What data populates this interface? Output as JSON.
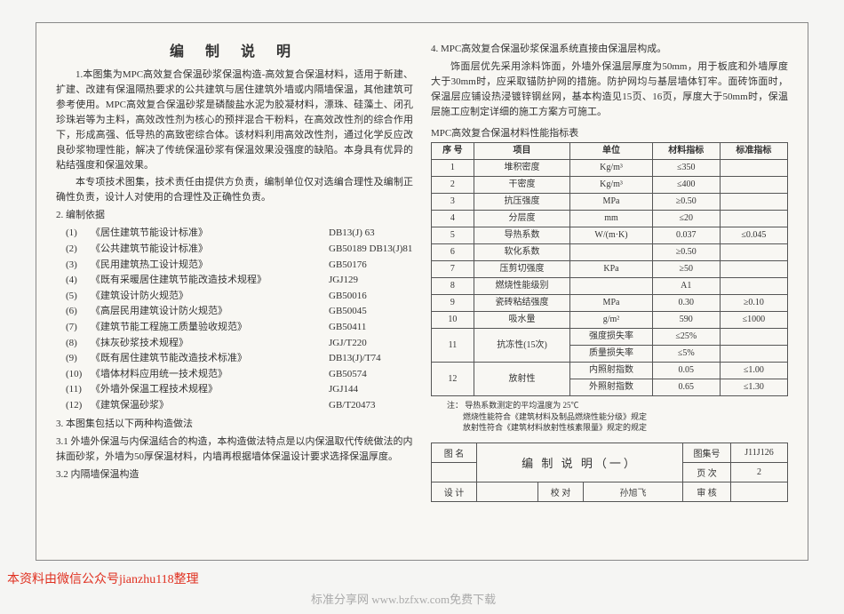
{
  "title": "编 制 说 明",
  "p1_1": "1.本图集为MPC高效复合保温砂浆保温构造-高效复合保温材料，适用于新建、扩建、改建有保温隔热要求的公共建筑与居住建筑外墙或内隔墙保温，其他建筑可参考使用。MPC高效复合保温砂浆是磷酸盐水泥为胶凝材料，漂珠、硅藻土、闭孔珍珠岩等为主料，高效改性剂为核心的预拌混合干粉料，在高效改性剂的综合作用下，形成高强、低导热的高致密综合体。该材料利用高效改性剂，通过化学反应改良砂浆物理性能，解决了传统保温砂浆有保温效果没强度的缺陷。本身具有优异的粘结强度和保温效果。",
  "p1_2": "本专项技术图集，技术责任由提供方负责，编制单位仅对选编合理性及编制正确性负责，设计人对使用的合理性及正确性负责。",
  "s2": "2. 编制依据",
  "standards": [
    {
      "n": "(1)",
      "name": "《居住建筑节能设计标准》",
      "code": "DB13(J) 63"
    },
    {
      "n": "(2)",
      "name": "《公共建筑节能设计标准》",
      "code": "GB50189 DB13(J)81"
    },
    {
      "n": "(3)",
      "name": "《民用建筑热工设计规范》",
      "code": "GB50176"
    },
    {
      "n": "(4)",
      "name": "《既有采暖居住建筑节能改造技术规程》",
      "code": "JGJ129"
    },
    {
      "n": "(5)",
      "name": "《建筑设计防火规范》",
      "code": "GB50016"
    },
    {
      "n": "(6)",
      "name": "《高层民用建筑设计防火规范》",
      "code": "GB50045"
    },
    {
      "n": "(7)",
      "name": "《建筑节能工程施工质量验收规范》",
      "code": "GB50411"
    },
    {
      "n": "(8)",
      "name": "《抹灰砂浆技术规程》",
      "code": "JGJ/T220"
    },
    {
      "n": "(9)",
      "name": "《既有居住建筑节能改造技术标准》",
      "code": "DB13(J)/T74"
    },
    {
      "n": "(10)",
      "name": "《墙体材料应用统一技术规范》",
      "code": "GB50574"
    },
    {
      "n": "(11)",
      "name": "《外墙外保温工程技术规程》",
      "code": "JGJ144"
    },
    {
      "n": "(12)",
      "name": "《建筑保温砂浆》",
      "code": "GB/T20473"
    }
  ],
  "s3": "3. 本图集包括以下两种构造做法",
  "s3_1": "3.1 外墙外保温与内保温结合的构造，本构造做法特点是以内保温取代传统做法的内抹面砂浆，外墙为50厚保温材料，内墙再根据墙体保温设计要求选择保温厚度。",
  "s3_2": "3.2 内隔墙保温构造",
  "p4_1": "4. MPC高效复合保温砂浆保温系统直接由保温层构成。",
  "p4_2": "饰面层优先采用涂料饰面，外墙外保温层厚度为50mm，用于板底和外墙厚度大于30mm时，应采取锚防护网的措施。防护网均与基层墙体钉牢。面砖饰面时，保温层应铺设热浸镀锌钢丝网，基本构造见15页、16页，厚度大于50mm时，保温层施工应制定详细的施工方案方可施工。",
  "tbl_title": "MPC高效复合保温材料性能指标表",
  "tbl": {
    "headers": [
      "序 号",
      "项目",
      "单位",
      "材料指标",
      "标准指标"
    ],
    "rows": [
      [
        "1",
        "堆积密度",
        "Kg/m³",
        "≤350",
        ""
      ],
      [
        "2",
        "干密度",
        "Kg/m³",
        "≤400",
        ""
      ],
      [
        "3",
        "抗压强度",
        "MPa",
        "≥0.50",
        ""
      ],
      [
        "4",
        "分层度",
        "mm",
        "≤20",
        ""
      ],
      [
        "5",
        "导热系数",
        "W/(m·K)",
        "0.037",
        "≤0.045"
      ],
      [
        "6",
        "软化系数",
        "",
        "≥0.50",
        ""
      ],
      [
        "7",
        "压剪切强度",
        "KPa",
        "≥50",
        ""
      ],
      [
        "8",
        "燃烧性能级别",
        "",
        "A1",
        ""
      ],
      [
        "9",
        "瓷砖粘结强度",
        "MPa",
        "0.30",
        "≥0.10"
      ],
      [
        "10",
        "吸水量",
        "g/m²",
        "590",
        "≤1000"
      ]
    ],
    "row11": {
      "n": "11",
      "name": "抗冻性(15次)",
      "sub1": "强度损失率",
      "v1": "≤25%",
      "sub2": "质量损失率",
      "v2": "≤5%"
    },
    "row12": {
      "n": "12",
      "name": "放射性",
      "sub1": "内照射指数",
      "v1": "0.05",
      "s1": "≤1.00",
      "sub2": "外照射指数",
      "v2": "0.65",
      "s2": "≤1.30"
    }
  },
  "notes": {
    "n0": "注：",
    "n1": "导热系数测定的平均温度为 25℃",
    "n2": "燃烧性能符合《建筑材料及制品燃烧性能分级》规定",
    "n3": "放射性符合《建筑材料放射性核素限量》规定的规定"
  },
  "titlebox": {
    "l_tuming": "图 名",
    "tuming": "编 制 说 明（一）",
    "l_tujih": "图集号",
    "tujih": "J11J126",
    "l_sheji": "设 计",
    "l_jiaodui": "校 对",
    "jiaodui_sig": "孙旭飞",
    "l_yeci": "页 次",
    "yeci": "2",
    "l_shenhe": "审 核"
  },
  "footer_red": "本资料由微信公众号jianzhu118整理",
  "footer_gray": "标准分享网   www.bzfxw.com免费下载"
}
